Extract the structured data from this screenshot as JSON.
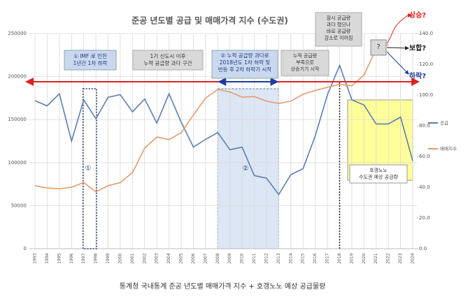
{
  "chart_data": {
    "type": "line",
    "title": "준공 년도별 공급 및 매매가격 지수 (수도권)",
    "caption": "통계청 국내통계 준공 년도별 매매가격 지수 + 호갱노노 예상 공급물량",
    "categories": [
      "1993",
      "1994",
      "1995",
      "1996",
      "1997",
      "1998",
      "1999",
      "2000",
      "2001",
      "2002",
      "2003",
      "2004",
      "2005",
      "2006",
      "2007",
      "2008",
      "2009",
      "2010",
      "2011",
      "2012",
      "2013",
      "2014",
      "2015",
      "2016",
      "2017",
      "2018",
      "2019",
      "2020",
      "2021",
      "2022",
      "2023",
      "2024"
    ],
    "series": [
      {
        "name": "공급",
        "color": "#5b7fb5",
        "values": [
          172000,
          166000,
          180000,
          125000,
          173000,
          151000,
          176000,
          179000,
          159000,
          174000,
          146000,
          180000,
          147000,
          118000,
          127000,
          135000,
          115000,
          118000,
          85000,
          82000,
          63000,
          86000,
          93000,
          131000,
          179000,
          213000,
          173000,
          167000,
          145000,
          145000,
          153000,
          102000
        ]
      },
      {
        "name": "매매지수",
        "color": "#e69b6a",
        "axis": "y2",
        "values": [
          41,
          39.5,
          39,
          40,
          43,
          37,
          41,
          43,
          49.5,
          65.5,
          72.7,
          71,
          75.5,
          87,
          98,
          103.6,
          102,
          98.6,
          99,
          96,
          94.5,
          96,
          100.5,
          103,
          105,
          107,
          106,
          113,
          130,
          133,
          null,
          null
        ]
      }
    ],
    "ylim": [
      0,
      250000
    ],
    "yticks": [
      0,
      50000,
      100000,
      150000,
      200000,
      250000
    ],
    "y2lim": [
      0,
      140
    ],
    "y2ticks": [
      {
        "value": 0,
        "label": "0.0"
      },
      {
        "value": 20,
        "label": "20.0"
      },
      {
        "value": 40,
        "label": "40.0"
      },
      {
        "value": 60,
        "label": "60.0"
      },
      {
        "value": 80,
        "label": "80.0"
      },
      {
        "value": 100,
        "label": "100.0"
      },
      {
        "value": 120,
        "label": "120.0"
      },
      {
        "value": 140,
        "label": "140.0"
      }
    ],
    "grid": true,
    "annotations": [
      {
        "lines": [
          "① IMF 로 인한",
          "1년간 1차 하락"
        ]
      },
      {
        "lines": [
          "1기 신도시 이후",
          "누적 공급량 과다 구간"
        ]
      },
      {
        "lines": [
          "② 누적 공급량 과다로",
          "2018년도 1차 하락 및",
          "반등 후 2차 하락기 시작"
        ]
      },
      {
        "lines": [
          "누적 공급량",
          "부족으로",
          "상승기기 시작"
        ]
      },
      {
        "lines": [
          "잠시 공급량",
          "과다 했으나",
          "바로 공급량",
          "감소로 이어짐"
        ]
      },
      {
        "lines": [
          "호갱노노",
          "수도권 예상 공급량"
        ]
      },
      {
        "lines": [
          "?"
        ]
      },
      {
        "lines": [
          "상승?"
        ]
      },
      {
        "lines": [
          "보합?"
        ]
      },
      {
        "lines": [
          "하락?"
        ]
      },
      {
        "lines": [
          "①"
        ]
      },
      {
        "lines": [
          "②"
        ]
      }
    ]
  }
}
